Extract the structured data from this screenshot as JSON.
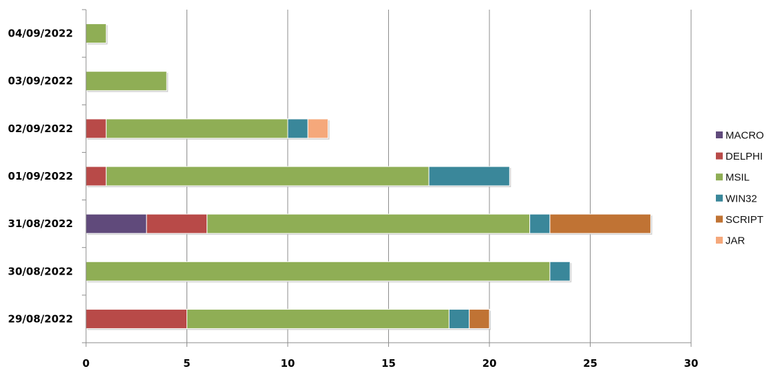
{
  "chart_data": {
    "type": "bar",
    "orientation": "horizontal",
    "stacked": true,
    "categories": [
      "29/08/2022",
      "30/08/2022",
      "31/08/2022",
      "01/09/2022",
      "02/09/2022",
      "03/09/2022",
      "04/09/2022"
    ],
    "series": [
      {
        "name": "MACRO",
        "color": "#604A7B",
        "values": [
          0,
          0,
          3,
          0,
          0,
          0,
          0
        ]
      },
      {
        "name": "DELPHI",
        "color": "#B84A48",
        "values": [
          5,
          0,
          3,
          1,
          1,
          0,
          0
        ]
      },
      {
        "name": "MSIL",
        "color": "#8FAE55",
        "values": [
          13,
          23,
          16,
          16,
          9,
          4,
          1
        ]
      },
      {
        "name": "WIN32",
        "color": "#3A879A",
        "values": [
          1,
          1,
          1,
          4,
          1,
          0,
          0
        ]
      },
      {
        "name": "SCRIPT",
        "color": "#C07334",
        "values": [
          1,
          0,
          5,
          0,
          0,
          0,
          0
        ]
      },
      {
        "name": "JAR",
        "color": "#F5A87B",
        "values": [
          0,
          0,
          0,
          0,
          1,
          0,
          0
        ]
      }
    ],
    "xlim": [
      0,
      30
    ],
    "xticks": [
      0,
      5,
      10,
      15,
      20,
      25,
      30
    ],
    "grid": "vertical",
    "legend_position": "right"
  }
}
